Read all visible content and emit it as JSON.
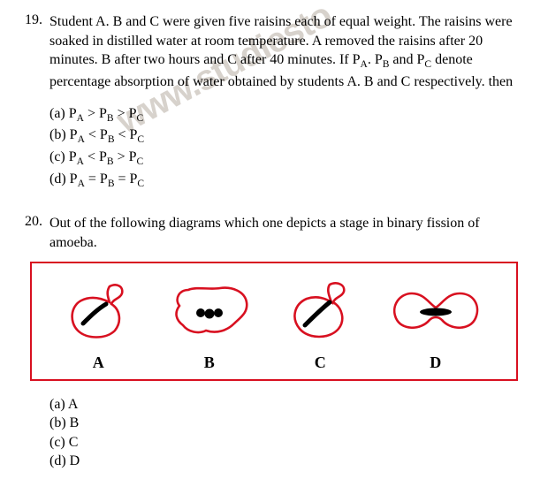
{
  "q19": {
    "number": "19.",
    "text": "Student A. B and C were given five raisins each of equal weight. The raisins were soaked in distilled water at room temperature. A removed the raisins after 20 minutes. B after two hours and C after 40 minutes. If P<sub>A</sub>. P<sub>B</sub> and P<sub>C</sub> denote percentage absorption of water obtained by students A. B and C respectively. then",
    "options": [
      "(a) P<sub>A</sub> > P<sub>B</sub> > P<sub>C</sub>",
      "(b) P<sub>A</sub> < P<sub>B</sub> < P<sub>C</sub>",
      "(c) P<sub>A</sub> < P<sub>B</sub> > P<sub>C</sub>",
      "(d) P<sub>A</sub> = P<sub>B</sub> = P<sub>C</sub>"
    ]
  },
  "q20": {
    "number": "20.",
    "text": "Out of the following diagrams which one depicts a stage in binary fission of amoeba.",
    "labels": [
      "A",
      "B",
      "C",
      "D"
    ],
    "options": [
      "(a) A",
      "(b) B",
      "(c) C",
      "(d) D"
    ]
  },
  "watermark": "www.studiesto",
  "diagram": {
    "stroke": "#d81020",
    "fill": "#000000",
    "stroke_width": 2.6
  }
}
